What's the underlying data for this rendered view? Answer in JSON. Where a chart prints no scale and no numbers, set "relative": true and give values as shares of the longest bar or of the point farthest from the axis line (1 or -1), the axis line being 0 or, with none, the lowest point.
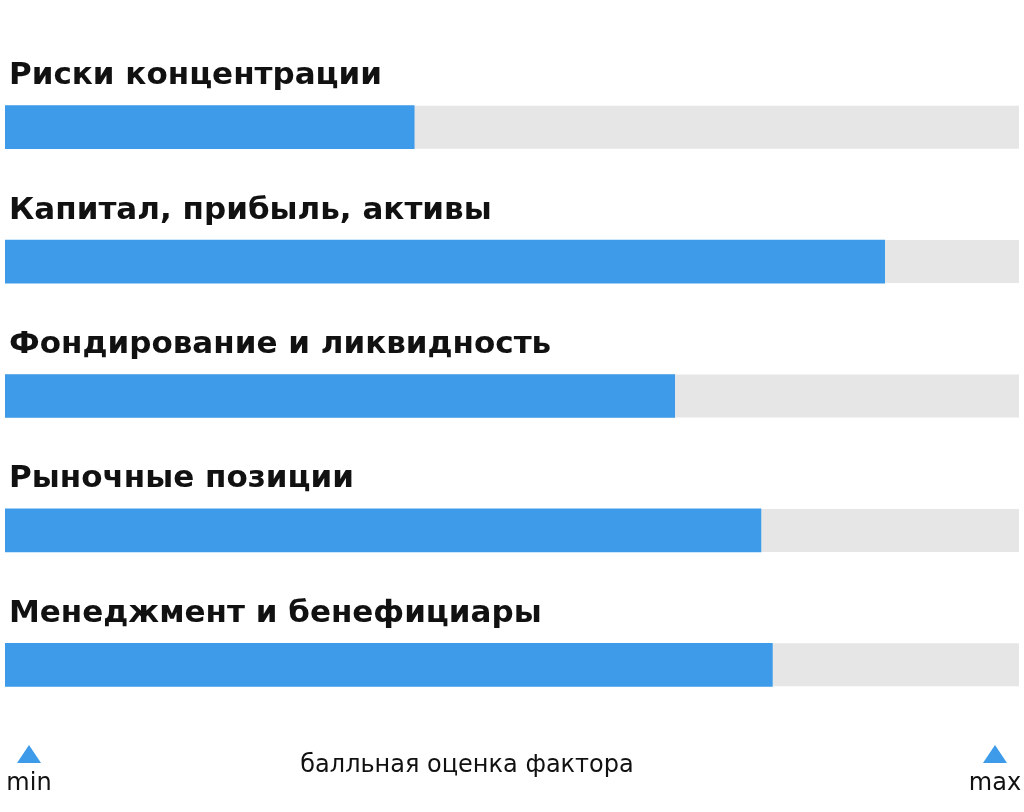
{
  "chart_data": {
    "type": "bar",
    "orientation": "horizontal",
    "relative": true,
    "categories": [
      "Риски концентрации",
      "Капитал, прибыль, активы",
      "Фондирование и ликвидность",
      "Рыночные позиции",
      "Менеджмент и бенефициары"
    ],
    "values": [
      0.465,
      1,
      0.761,
      0.859,
      0.872
    ],
    "color": "#3d9be9",
    "xlabel": "балльная оценка фактора",
    "annotations": [
      "min",
      "max"
    ]
  }
}
